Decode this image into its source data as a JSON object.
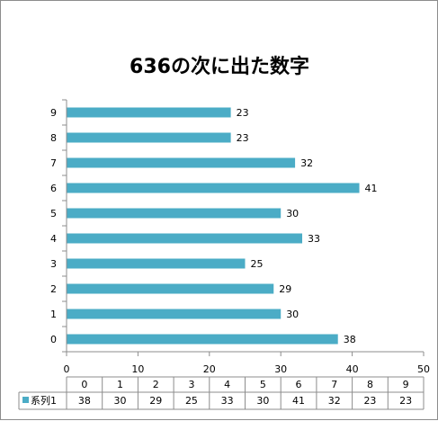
{
  "chart_data": {
    "type": "bar",
    "orientation": "horizontal",
    "title": "636の次に出た数字",
    "categories": [
      "0",
      "1",
      "2",
      "3",
      "4",
      "5",
      "6",
      "7",
      "8",
      "9"
    ],
    "series": [
      {
        "name": "系列1",
        "values": [
          38,
          30,
          29,
          25,
          33,
          30,
          41,
          32,
          23,
          23
        ],
        "color": "#4bacc6"
      }
    ],
    "xlim": [
      0,
      50
    ],
    "x_ticks": [
      0,
      10,
      20,
      30,
      40,
      50
    ],
    "data_labels": true,
    "data_table": true,
    "grid": false,
    "legend": "data-table"
  }
}
